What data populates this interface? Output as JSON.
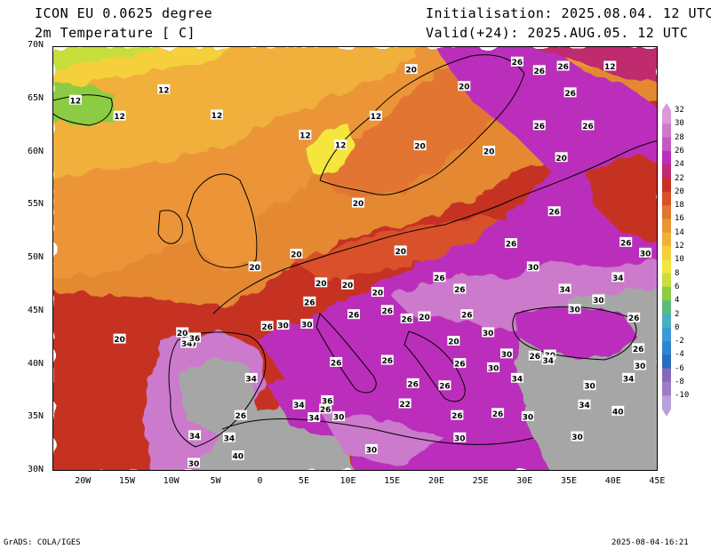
{
  "header": {
    "model": "ICON EU 0.0625 degree",
    "field": "2m Temperature [ C]",
    "init": "Initialisation: 2025.08.04. 12 UTC",
    "valid": "Valid(+24): 2025.AUG.05. 12 UTC"
  },
  "axes": {
    "lat_labels": [
      "70N",
      "65N",
      "60N",
      "55N",
      "50N",
      "45N",
      "40N",
      "35N",
      "30N"
    ],
    "lon_labels": [
      "20W",
      "15W",
      "10W",
      "5W",
      "0",
      "5E",
      "10E",
      "15E",
      "20E",
      "25E",
      "30E",
      "35E",
      "40E",
      "45E"
    ]
  },
  "colorbar": {
    "levels": [
      "32",
      "30",
      "28",
      "26",
      "24",
      "22",
      "20",
      "18",
      "16",
      "14",
      "12",
      "10",
      "8",
      "6",
      "4",
      "2",
      "0",
      "-2",
      "-4",
      "-6",
      "-8",
      "-10"
    ],
    "colors": [
      "#d89ad8",
      "#cc7acc",
      "#c358c3",
      "#bb2ebb",
      "#c02a6e",
      "#c63324",
      "#d8512a",
      "#e27530",
      "#eb9537",
      "#f0b03a",
      "#f6cf3d",
      "#f4e63e",
      "#c8de3c",
      "#8ccc44",
      "#5cbb7a",
      "#4aaec0",
      "#3a9ad8",
      "#2e84d0",
      "#2a6cc0",
      "#8a68b8",
      "#a07cc8",
      "#b8a0d8"
    ]
  },
  "footer": {
    "left": "GrADS: COLA/IGES",
    "right": "2025-08-04-16:21"
  },
  "contour_labels": [
    {
      "t": "12",
      "lon": -11,
      "lat": 66
    },
    {
      "t": "12",
      "lon": -21,
      "lat": 65
    },
    {
      "t": "12",
      "lon": -16,
      "lat": 63.5
    },
    {
      "t": "12",
      "lon": -5,
      "lat": 63.6
    },
    {
      "t": "12",
      "lon": 5,
      "lat": 61.7
    },
    {
      "t": "12",
      "lon": 9,
      "lat": 60.8
    },
    {
      "t": "12",
      "lon": 13,
      "lat": 63.5
    },
    {
      "t": "12",
      "lon": 39.5,
      "lat": 68.2
    },
    {
      "t": "20",
      "lon": 17,
      "lat": 67.9
    },
    {
      "t": "20",
      "lon": 23,
      "lat": 66.3
    },
    {
      "t": "20",
      "lon": 18,
      "lat": 60.7
    },
    {
      "t": "20",
      "lon": 25.8,
      "lat": 60.2
    },
    {
      "t": "20",
      "lon": 34,
      "lat": 59.6
    },
    {
      "t": "20",
      "lon": 11,
      "lat": 55.3
    },
    {
      "t": "20",
      "lon": 4,
      "lat": 50.5
    },
    {
      "t": "20",
      "lon": -0.7,
      "lat": 49.3
    },
    {
      "t": "20",
      "lon": 15.8,
      "lat": 50.8
    },
    {
      "t": "20",
      "lon": -16,
      "lat": 42.5
    },
    {
      "t": "20",
      "lon": 6.8,
      "lat": 47.8
    },
    {
      "t": "20",
      "lon": 9.8,
      "lat": 47.6
    },
    {
      "t": "20",
      "lon": 13.2,
      "lat": 46.9
    },
    {
      "t": "20",
      "lon": 18.5,
      "lat": 44.6
    },
    {
      "t": "20",
      "lon": 21.8,
      "lat": 42.3
    },
    {
      "t": "20",
      "lon": -8.9,
      "lat": 43.1
    },
    {
      "t": "26",
      "lon": 29,
      "lat": 68.6
    },
    {
      "t": "26",
      "lon": 31.5,
      "lat": 67.8
    },
    {
      "t": "26",
      "lon": 34.2,
      "lat": 68.2
    },
    {
      "t": "26",
      "lon": 35,
      "lat": 65.7
    },
    {
      "t": "26",
      "lon": 31.5,
      "lat": 62.6
    },
    {
      "t": "26",
      "lon": 37,
      "lat": 62.6
    },
    {
      "t": "26",
      "lon": 33.2,
      "lat": 54.5
    },
    {
      "t": "26",
      "lon": 28.3,
      "lat": 51.5
    },
    {
      "t": "26",
      "lon": 41.3,
      "lat": 51.6
    },
    {
      "t": "26",
      "lon": 20.2,
      "lat": 48.3
    },
    {
      "t": "26",
      "lon": 22.5,
      "lat": 47.2
    },
    {
      "t": "26",
      "lon": 5.5,
      "lat": 46
    },
    {
      "t": "26",
      "lon": 10.5,
      "lat": 44.8
    },
    {
      "t": "26",
      "lon": 14.3,
      "lat": 45.2
    },
    {
      "t": "26",
      "lon": 16.5,
      "lat": 44.4
    },
    {
      "t": "26",
      "lon": 23.3,
      "lat": 44.8
    },
    {
      "t": "26",
      "lon": 0.7,
      "lat": 43.7
    },
    {
      "t": "26",
      "lon": 8.5,
      "lat": 40.3
    },
    {
      "t": "26",
      "lon": 14.3,
      "lat": 40.5
    },
    {
      "t": "26",
      "lon": 17.2,
      "lat": 38.3
    },
    {
      "t": "26",
      "lon": 20.8,
      "lat": 38.1
    },
    {
      "t": "26",
      "lon": 22.5,
      "lat": 40.2
    },
    {
      "t": "26",
      "lon": 22.2,
      "lat": 35.3
    },
    {
      "t": "26",
      "lon": 26.8,
      "lat": 35.5
    },
    {
      "t": "26",
      "lon": 31,
      "lat": 40.9
    },
    {
      "t": "26",
      "lon": 42.2,
      "lat": 44.5
    },
    {
      "t": "26",
      "lon": 42.7,
      "lat": 41.6
    },
    {
      "t": "26",
      "lon": -2.3,
      "lat": 35.3
    },
    {
      "t": "26",
      "lon": 7.3,
      "lat": 35.9
    },
    {
      "t": "30",
      "lon": 30.8,
      "lat": 49.3
    },
    {
      "t": "30",
      "lon": 43.5,
      "lat": 50.6
    },
    {
      "t": "30",
      "lon": 35.5,
      "lat": 45.3
    },
    {
      "t": "30",
      "lon": 38.2,
      "lat": 46.2
    },
    {
      "t": "30",
      "lon": 2.5,
      "lat": 43.8
    },
    {
      "t": "30",
      "lon": 25.7,
      "lat": 43.1
    },
    {
      "t": "30",
      "lon": 27.8,
      "lat": 41.1
    },
    {
      "t": "30",
      "lon": 32.7,
      "lat": 41
    },
    {
      "t": "30",
      "lon": 42.9,
      "lat": 40
    },
    {
      "t": "30",
      "lon": 26.3,
      "lat": 39.8
    },
    {
      "t": "30",
      "lon": 37.2,
      "lat": 38.1
    },
    {
      "t": "30",
      "lon": 30.2,
      "lat": 35.2
    },
    {
      "t": "30",
      "lon": 8.8,
      "lat": 35.2
    },
    {
      "t": "30",
      "lon": 22.5,
      "lat": 33.2
    },
    {
      "t": "30",
      "lon": 12.5,
      "lat": 32.1
    },
    {
      "t": "30",
      "lon": 35.8,
      "lat": 33.3
    },
    {
      "t": "30",
      "lon": -7.6,
      "lat": 30.8
    },
    {
      "t": "30",
      "lon": -8,
      "lat": 42.1
    },
    {
      "t": "30",
      "lon": 5.2,
      "lat": 43.9
    },
    {
      "t": "34",
      "lon": 34.4,
      "lat": 47.2
    },
    {
      "t": "34",
      "lon": 40.4,
      "lat": 48.3
    },
    {
      "t": "34",
      "lon": 32.5,
      "lat": 40.5
    },
    {
      "t": "34",
      "lon": 29,
      "lat": 38.8
    },
    {
      "t": "34",
      "lon": 41.6,
      "lat": 38.8
    },
    {
      "t": "34",
      "lon": 36.6,
      "lat": 36.3
    },
    {
      "t": "34",
      "lon": -1.1,
      "lat": 38.8
    },
    {
      "t": "34",
      "lon": 4.3,
      "lat": 36.3
    },
    {
      "t": "34",
      "lon": 6,
      "lat": 35.1
    },
    {
      "t": "34",
      "lon": -7.5,
      "lat": 33.4
    },
    {
      "t": "34",
      "lon": -3.6,
      "lat": 33.2
    },
    {
      "t": "34",
      "lon": -8.4,
      "lat": 42.1
    },
    {
      "t": "36",
      "lon": 7.5,
      "lat": 36.7
    },
    {
      "t": "36",
      "lon": -7.5,
      "lat": 42.6
    },
    {
      "t": "40",
      "lon": 40.4,
      "lat": 35.7
    },
    {
      "t": "40",
      "lon": -2.6,
      "lat": 31.5
    },
    {
      "t": "22",
      "lon": 16.3,
      "lat": 36.4
    }
  ]
}
